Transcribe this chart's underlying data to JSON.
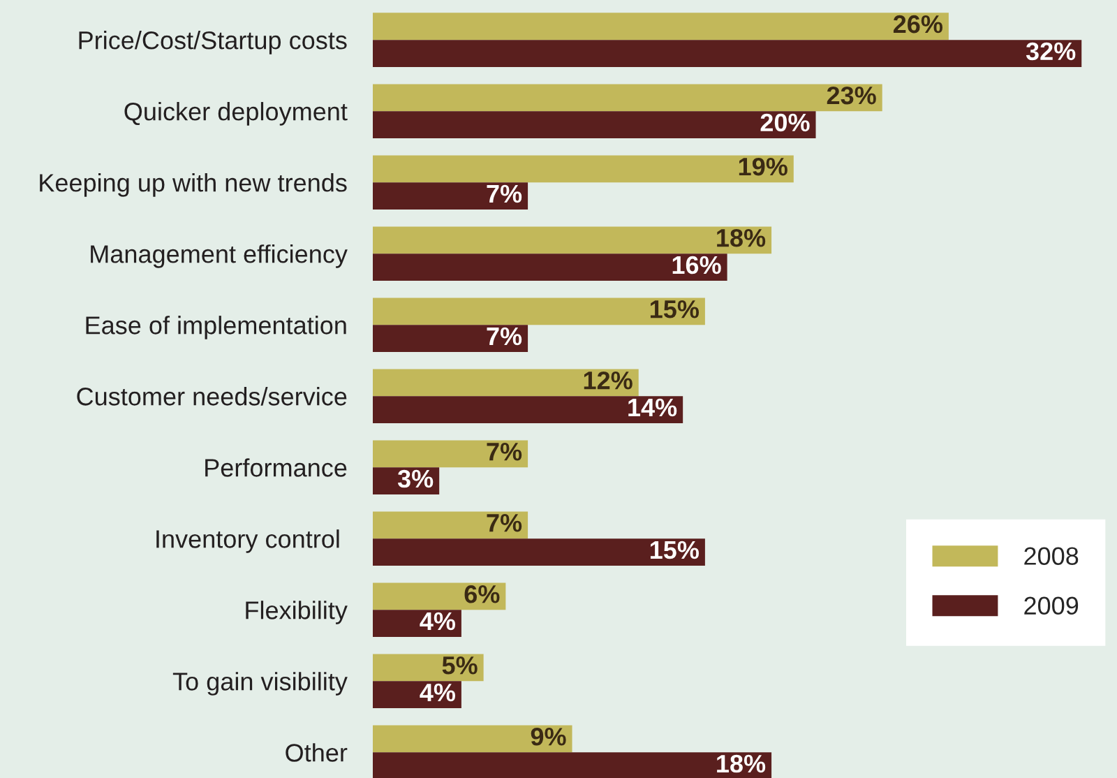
{
  "chart_data": {
    "type": "bar",
    "orientation": "horizontal",
    "categories": [
      "Price/Cost/Startup costs",
      "Quicker deployment",
      "Keeping up with new trends",
      "Management efficiency",
      "Ease of implementation",
      "Customer needs/service",
      "Performance",
      "Inventory control ",
      "Flexibility",
      "To gain visibility",
      "Other"
    ],
    "series": [
      {
        "name": "2008",
        "color": "#c2b85a",
        "values": [
          26,
          23,
          19,
          18,
          15,
          12,
          7,
          7,
          6,
          5,
          9
        ],
        "value_labels": [
          "26%",
          "23%",
          "19%",
          "18%",
          "15%",
          "12%",
          "7%",
          "7%",
          "6%",
          "5%",
          "9%"
        ]
      },
      {
        "name": "2009",
        "color": "#5a1f1e",
        "values": [
          32,
          20,
          7,
          16,
          7,
          14,
          3,
          15,
          4,
          4,
          18
        ],
        "value_labels": [
          "32%",
          "20%",
          "7%",
          "16%",
          "7%",
          "14%",
          "3%",
          "15%",
          "4%",
          "4%",
          "18%"
        ]
      }
    ],
    "legend": "bottom right"
  }
}
